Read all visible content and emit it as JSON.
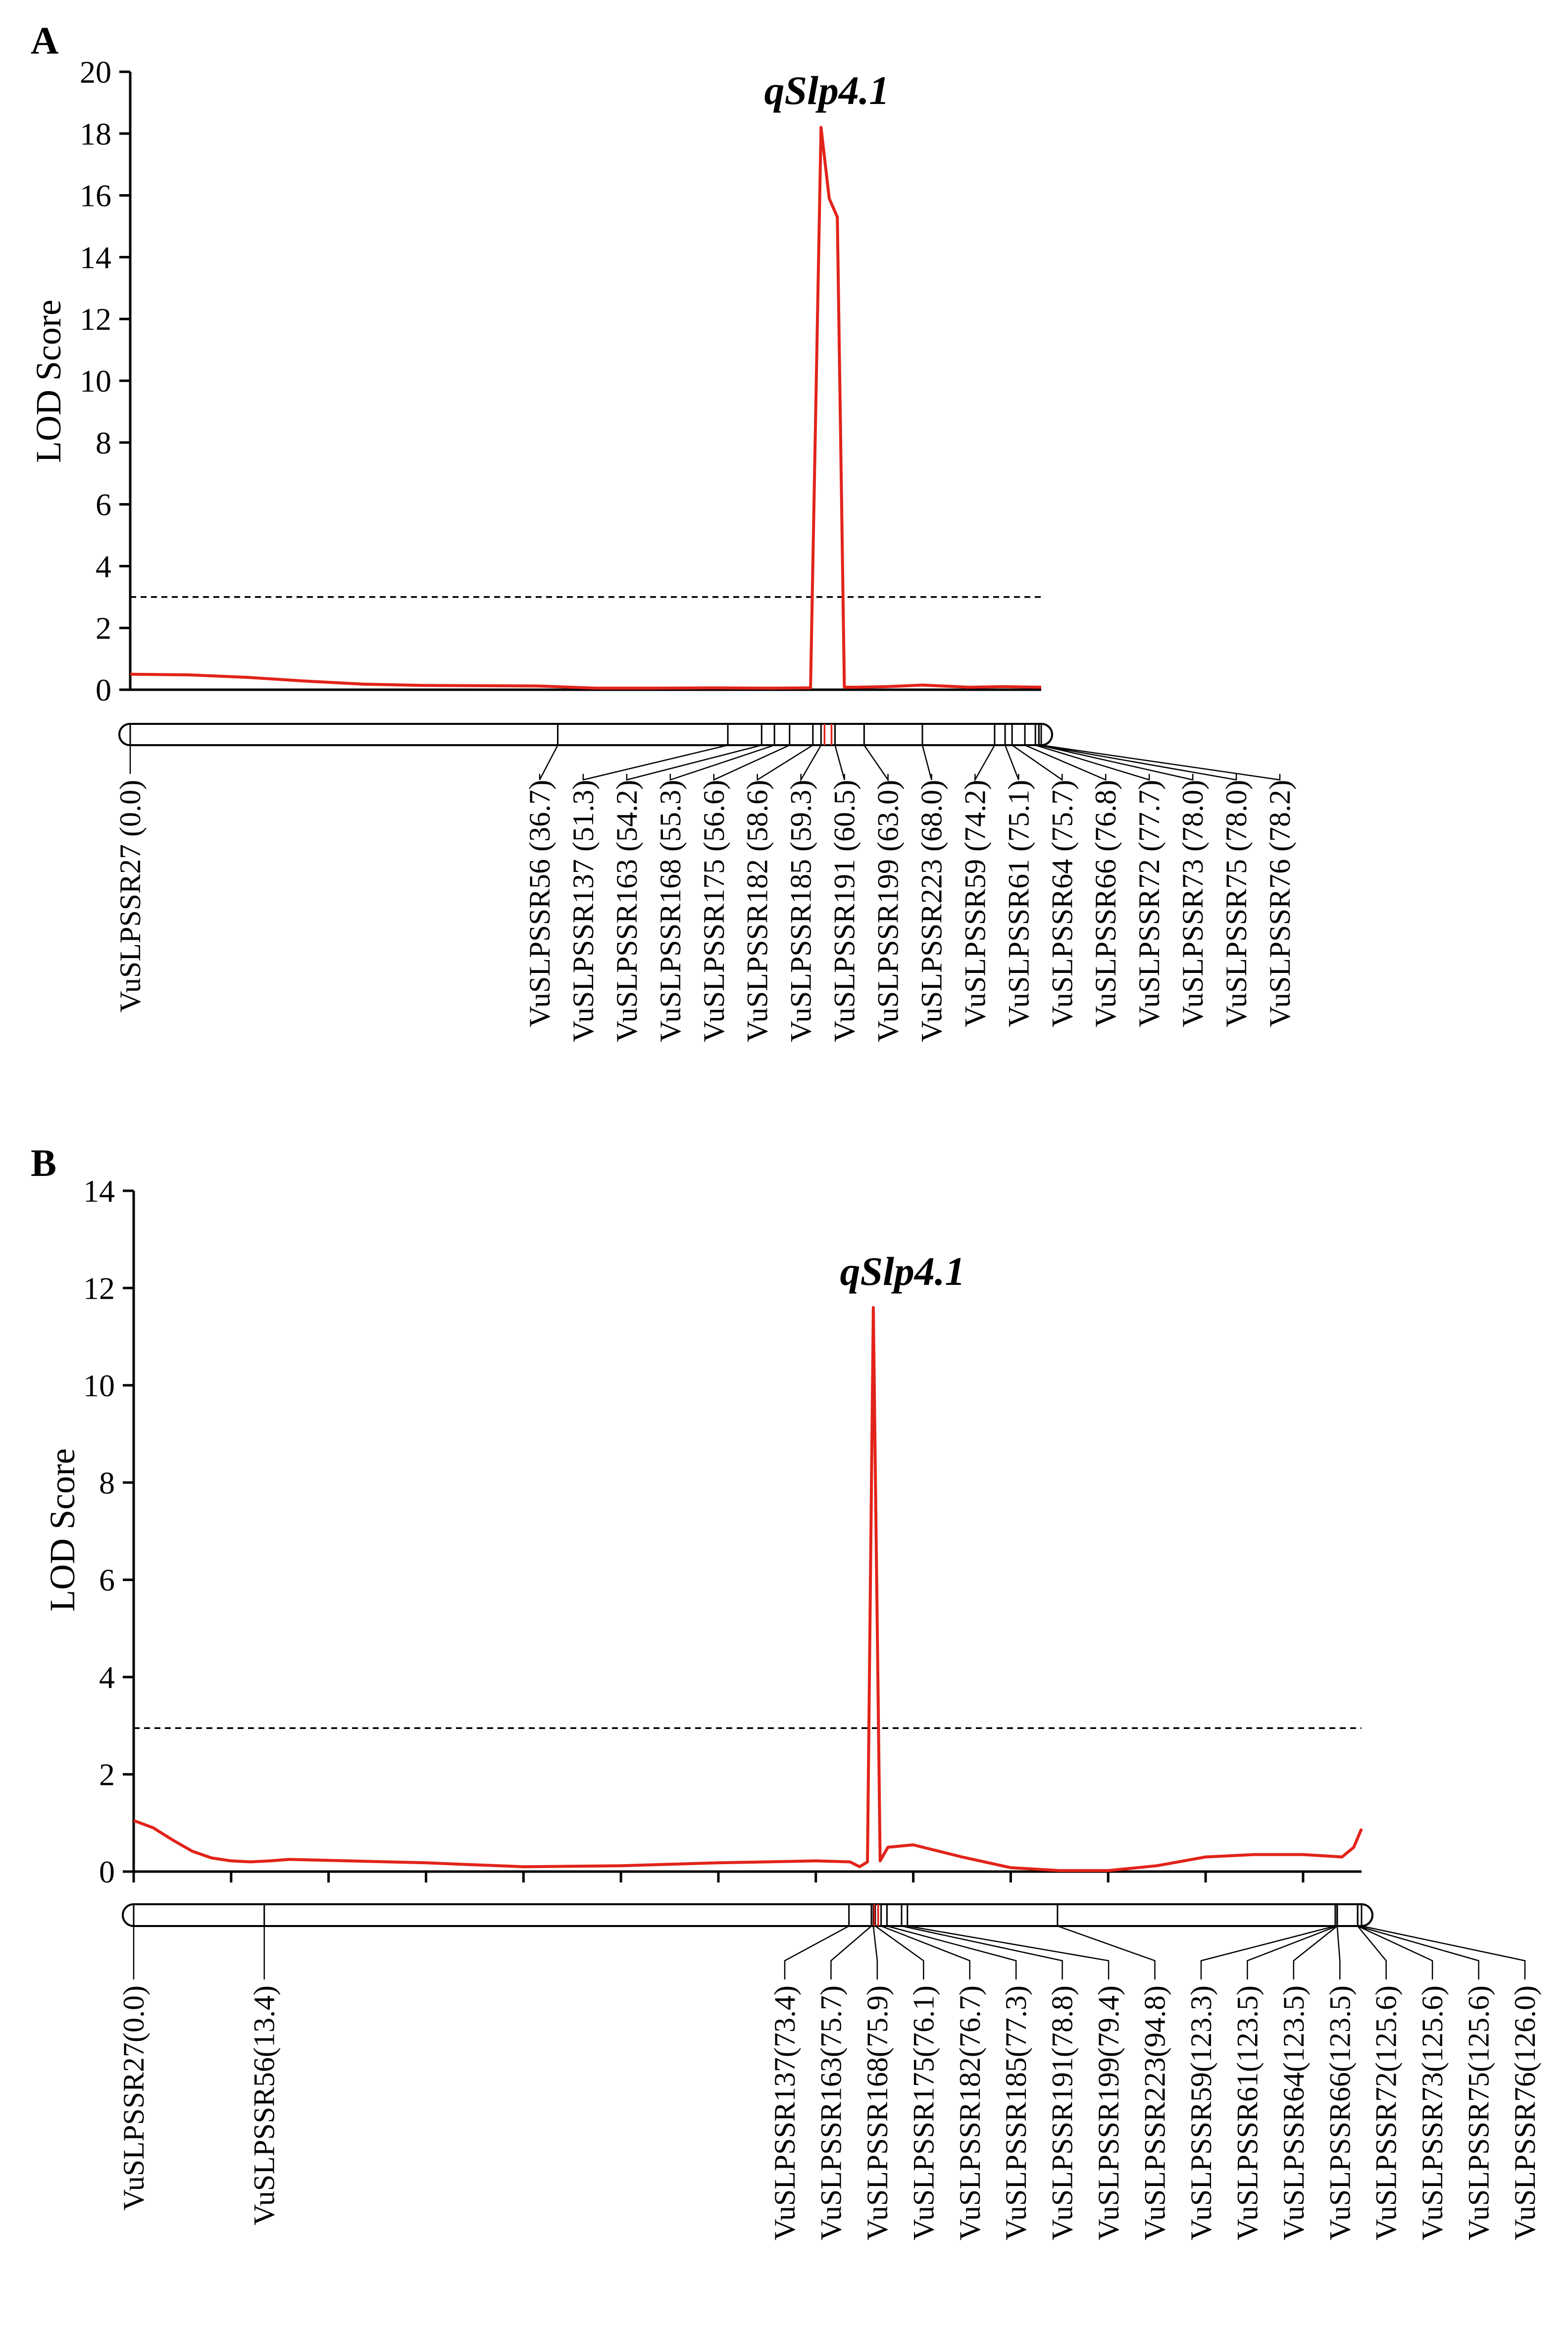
{
  "colors": {
    "lod": "#e2231a",
    "axis": "#000000",
    "highlight": "#e2231a"
  },
  "chart_data": [
    {
      "panel": "A",
      "type": "line",
      "title": "",
      "qtl_label": "qSlp4.1",
      "xlabel": "",
      "ylabel": "LOD Score",
      "ylim": [
        0,
        20
      ],
      "yticks": [
        0,
        2,
        4,
        6,
        8,
        10,
        12,
        14,
        16,
        18,
        20
      ],
      "xlim": [
        0,
        78.2
      ],
      "threshold": 3.0,
      "series": [
        {
          "name": "LOD",
          "x": [
            0,
            5,
            10,
            15,
            20,
            25,
            30,
            35,
            40,
            45,
            50,
            55,
            58.4,
            59.3,
            60.0,
            60.7,
            61.3,
            62.3,
            65,
            68,
            72,
            75,
            78.2
          ],
          "values": [
            0.5,
            0.48,
            0.4,
            0.28,
            0.18,
            0.14,
            0.13,
            0.12,
            0.05,
            0.05,
            0.06,
            0.05,
            0.06,
            18.2,
            15.9,
            15.3,
            0.08,
            0.08,
            0.1,
            0.15,
            0.08,
            0.1,
            0.08
          ]
        }
      ],
      "markers": [
        {
          "label": "VuSLPSSR27 (0.0)",
          "pos": 0.0
        },
        {
          "label": "VuSLPSSR56 (36.7)",
          "pos": 36.7
        },
        {
          "label": "VuSLPSSR137 (51.3)",
          "pos": 51.3
        },
        {
          "label": "VuSLPSSR163 (54.2)",
          "pos": 54.2
        },
        {
          "label": "VuSLPSSR168 (55.3)",
          "pos": 55.3
        },
        {
          "label": "VuSLPSSR175 (56.6)",
          "pos": 56.6
        },
        {
          "label": "VuSLPSSR182 (58.6)",
          "pos": 58.6
        },
        {
          "label": "VuSLPSSR185 (59.3)",
          "pos": 59.3
        },
        {
          "label": "VuSLPSSR191 (60.5)",
          "pos": 60.5
        },
        {
          "label": "VuSLPSSR199 (63.0)",
          "pos": 63.0
        },
        {
          "label": "VuSLPSSR223 (68.0)",
          "pos": 68.0
        },
        {
          "label": "VuSLPSSR59 (74.2)",
          "pos": 74.2
        },
        {
          "label": "VuSLPSSR61 (75.1)",
          "pos": 75.1
        },
        {
          "label": "VuSLPSSR64 (75.7)",
          "pos": 75.7
        },
        {
          "label": "VuSLPSSR66 (76.8)",
          "pos": 76.8
        },
        {
          "label": "VuSLPSSR72 (77.7)",
          "pos": 77.7
        },
        {
          "label": "VuSLPSSR73 (78.0)",
          "pos": 78.0
        },
        {
          "label": "VuSLPSSR75 (78.0)",
          "pos": 78.0
        },
        {
          "label": "VuSLPSSR76 (78.2)",
          "pos": 78.2
        }
      ],
      "highlight_positions": [
        59.6,
        60.2
      ]
    },
    {
      "panel": "B",
      "type": "line",
      "title": "",
      "qtl_label": "qSlp4.1",
      "xlabel": "",
      "ylabel": "LOD Score",
      "ylim": [
        0,
        14
      ],
      "yticks": [
        0,
        2,
        4,
        6,
        8,
        10,
        12,
        14
      ],
      "xlim": [
        0,
        126.0
      ],
      "xtick_step": 10,
      "threshold": 2.95,
      "series": [
        {
          "name": "LOD",
          "x": [
            0,
            2,
            4,
            6,
            8,
            10,
            12,
            14,
            16,
            20,
            30,
            40,
            50,
            60,
            70,
            73.5,
            74.5,
            75.3,
            75.9,
            76.6,
            77.4,
            80,
            85,
            90,
            95,
            100,
            105,
            110,
            115,
            120,
            124,
            125.2,
            126.0
          ],
          "values": [
            1.05,
            0.9,
            0.65,
            0.42,
            0.28,
            0.22,
            0.2,
            0.22,
            0.25,
            0.23,
            0.18,
            0.1,
            0.12,
            0.18,
            0.22,
            0.2,
            0.1,
            0.2,
            11.6,
            0.22,
            0.5,
            0.55,
            0.3,
            0.08,
            0.02,
            0.02,
            0.12,
            0.3,
            0.35,
            0.35,
            0.3,
            0.5,
            0.88
          ]
        }
      ],
      "markers": [
        {
          "label": "VuSLPSSR27(0.0)",
          "pos": 0.0
        },
        {
          "label": "VuSLPSSR56(13.4)",
          "pos": 13.4
        },
        {
          "label": "VuSLPSSR137(73.4)",
          "pos": 73.4
        },
        {
          "label": "VuSLPSSR163(75.7)",
          "pos": 75.7
        },
        {
          "label": "VuSLPSSR168(75.9)",
          "pos": 75.9
        },
        {
          "label": "VuSLPSSR175(76.1)",
          "pos": 76.1
        },
        {
          "label": "VuSLPSSR182(76.7)",
          "pos": 76.7
        },
        {
          "label": "VuSLPSSR185(77.3)",
          "pos": 77.3
        },
        {
          "label": "VuSLPSSR191(78.8)",
          "pos": 78.8
        },
        {
          "label": "VuSLPSSR199(79.4)",
          "pos": 79.4
        },
        {
          "label": "VuSLPSSR223(94.8)",
          "pos": 94.8
        },
        {
          "label": "VuSLPSSR59(123.3)",
          "pos": 123.3
        },
        {
          "label": "VuSLPSSR61(123.5)",
          "pos": 123.5
        },
        {
          "label": "VuSLPSSR64(123.5)",
          "pos": 123.5
        },
        {
          "label": "VuSLPSSR66(123.5)",
          "pos": 123.5
        },
        {
          "label": "VuSLPSSR72(125.6)",
          "pos": 125.6
        },
        {
          "label": "VuSLPSSR73(125.6)",
          "pos": 125.6
        },
        {
          "label": "VuSLPSSR75(125.6)",
          "pos": 125.6
        },
        {
          "label": "VuSLPSSR76(126.0)",
          "pos": 126.0
        }
      ],
      "highlight_positions": [
        76.0,
        76.4
      ]
    }
  ]
}
